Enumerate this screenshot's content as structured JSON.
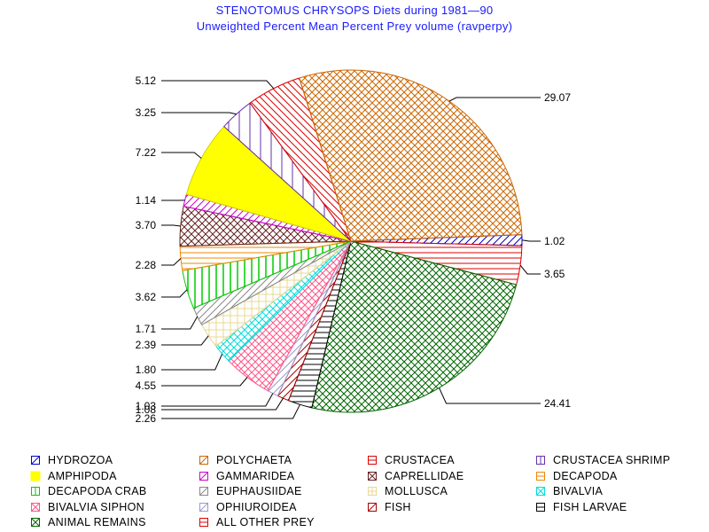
{
  "chart_data": {
    "type": "pie",
    "title": "STENOTOMUS CHRYSOPS Diets during 1981—90",
    "subtitle": "Unweighted Percent Mean Percent Prey  volume (ravperpy)",
    "slices": [
      {
        "name": "HYDROZOA",
        "value": 1.02,
        "label": "1.02",
        "color": "#0000cc",
        "pattern": "fwd-hatch"
      },
      {
        "name": "CRUSTACEA",
        "value": 3.65,
        "label": "3.65",
        "color": "#dd0000",
        "pattern": "horizontal"
      },
      {
        "name": "ANIMAL REMAINS",
        "value": 24.41,
        "label": "24.41",
        "color": "#006600",
        "pattern": "crosshatch"
      },
      {
        "name": "FISH LARVAE",
        "value": 2.26,
        "label": "2.26",
        "color": "#000000",
        "pattern": "horizontal"
      },
      {
        "name": "FISH",
        "value": 1.08,
        "label": "1.08",
        "color": "#aa0000",
        "pattern": "fwd-hatch"
      },
      {
        "name": "OPHIUROIDEA",
        "value": 1.03,
        "label": "1.03",
        "color": "#9999cc",
        "pattern": "fwd-hatch"
      },
      {
        "name": "BIVALVIA SIPHON",
        "value": 4.55,
        "label": "4.55",
        "color": "#ff5588",
        "pattern": "crosshatch"
      },
      {
        "name": "BIVALVIA",
        "value": 1.8,
        "label": "1.80",
        "color": "#00dddd",
        "pattern": "crosshatch"
      },
      {
        "name": "MOLLUSCA",
        "value": 2.39,
        "label": "2.39",
        "color": "#e8d890",
        "pattern": "grid"
      },
      {
        "name": "EUPHAUSIIDAE",
        "value": 1.71,
        "label": "1.71",
        "color": "#888888",
        "pattern": "fwd-hatch"
      },
      {
        "name": "DECAPODA CRAB",
        "value": 3.62,
        "label": "3.62",
        "color": "#00cc00",
        "pattern": "vertical"
      },
      {
        "name": "DECAPODA",
        "value": 2.28,
        "label": "2.28",
        "color": "#ee8800",
        "pattern": "horizontal"
      },
      {
        "name": "CAPRELLIDAE",
        "value": 3.7,
        "label": "3.70",
        "color": "#662222",
        "pattern": "crosshatch"
      },
      {
        "name": "GAMMARIDEA",
        "value": 1.14,
        "label": "1.14",
        "color": "#cc00cc",
        "pattern": "fwd-hatch"
      },
      {
        "name": "AMPHIPODA",
        "value": 7.22,
        "label": "7.22",
        "color": "#ffff00",
        "pattern": "solid"
      },
      {
        "name": "CRUSTACEA SHRIMP",
        "value": 3.25,
        "label": "3.25",
        "color": "#6633aa",
        "pattern": "vertical-sparse"
      },
      {
        "name": "ALL OTHER PREY",
        "value": 5.12,
        "label": "5.12",
        "color": "#dd0000",
        "pattern": "back-hatch"
      },
      {
        "name": "POLYCHAETA",
        "value": 29.07,
        "label": "29.07",
        "color": "#cc6600",
        "pattern": "crosshatch"
      }
    ]
  },
  "legend": {
    "items": [
      {
        "label": "HYDROZOA",
        "color": "#0000cc",
        "icon": "fwd"
      },
      {
        "label": "POLYCHAETA",
        "color": "#cc6600",
        "icon": "fwd"
      },
      {
        "label": "CRUSTACEA",
        "color": "#dd0000",
        "icon": "horiz"
      },
      {
        "label": "CRUSTACEA SHRIMP",
        "color": "#6633aa",
        "icon": "vert"
      },
      {
        "label": "AMPHIPODA",
        "color": "#ffff00",
        "icon": "solid"
      },
      {
        "label": "GAMMARIDEA",
        "color": "#cc00cc",
        "icon": "fwd"
      },
      {
        "label": "CAPRELLIDAE",
        "color": "#662222",
        "icon": "cross"
      },
      {
        "label": "DECAPODA",
        "color": "#ee8800",
        "icon": "horiz"
      },
      {
        "label": "DECAPODA CRAB",
        "color": "#00cc00",
        "icon": "vert"
      },
      {
        "label": "EUPHAUSIIDAE",
        "color": "#888888",
        "icon": "fwd"
      },
      {
        "label": "MOLLUSCA",
        "color": "#e8d890",
        "icon": "grid"
      },
      {
        "label": "BIVALVIA",
        "color": "#00dddd",
        "icon": "cross"
      },
      {
        "label": "BIVALVIA SIPHON",
        "color": "#ff5588",
        "icon": "cross"
      },
      {
        "label": "OPHIUROIDEA",
        "color": "#9999cc",
        "icon": "fwd"
      },
      {
        "label": "FISH",
        "color": "#aa0000",
        "icon": "fwd"
      },
      {
        "label": "FISH LARVAE",
        "color": "#000000",
        "icon": "horiz"
      },
      {
        "label": "ANIMAL REMAINS",
        "color": "#006600",
        "icon": "cross"
      },
      {
        "label": "ALL OTHER PREY",
        "color": "#dd0000",
        "icon": "horiz"
      }
    ]
  }
}
